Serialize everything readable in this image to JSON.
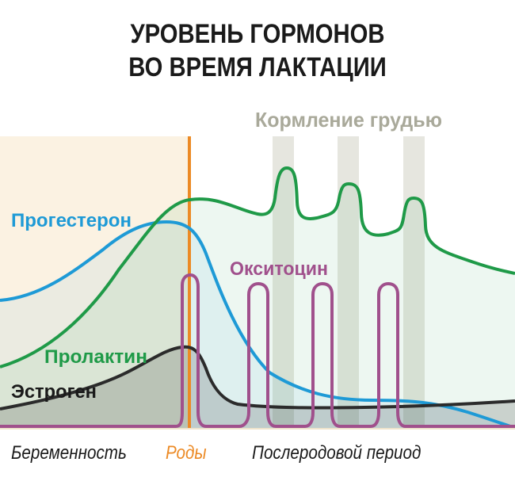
{
  "title": {
    "line1": "УРОВЕНЬ ГОРМОНОВ",
    "line2": "ВО ВРЕМЯ ЛАКТАЦИИ"
  },
  "feeding_label": "Кормление грудью",
  "phases": {
    "pregnancy": "Беременность",
    "birth": "Роды",
    "postpartum": "Послеродовой период"
  },
  "colors": {
    "progesterone": "#1e9ad6",
    "prolactin": "#1f9a48",
    "estrogen": "#2b2b2b",
    "oxytocin": "#a0508c",
    "birth_line": "#ec8a25",
    "feeding_band": "#b8b8a2",
    "pregnancy_bg": "#fbf2e2"
  },
  "chart_data": {
    "type": "line",
    "title": "УРОВЕНЬ ГОРМОНОВ ВО ВРЕМЯ ЛАКТАЦИИ",
    "x_phases": [
      "Беременность",
      "Роды",
      "Послеродовой период"
    ],
    "annotation": "Кормление грудью",
    "feeding_episodes": 3,
    "series": [
      {
        "name": "Прогестерон",
        "trend": "rises during pregnancy, peaks just before birth, drops sharply after birth",
        "points": [
          [
            0,
            0.46
          ],
          [
            0.2,
            0.62
          ],
          [
            0.32,
            0.82
          ],
          [
            0.37,
            0.85
          ],
          [
            0.45,
            0.6
          ],
          [
            0.55,
            0.28
          ],
          [
            0.75,
            0.12
          ],
          [
            1.0,
            0.0
          ]
        ]
      },
      {
        "name": "Пролактин",
        "trend": "rises through pregnancy, stays high after birth, spikes with each feeding, slowly declines",
        "points": [
          [
            0,
            0.23
          ],
          [
            0.2,
            0.55
          ],
          [
            0.37,
            0.92
          ],
          [
            0.5,
            0.88
          ],
          [
            0.54,
            1.0
          ],
          [
            0.67,
            0.8
          ],
          [
            0.79,
            0.76
          ],
          [
            1.0,
            0.62
          ]
        ]
      },
      {
        "name": "Эстроген",
        "trend": "rises to a peak at birth, drops to a low level after birth",
        "points": [
          [
            0,
            0.11
          ],
          [
            0.2,
            0.23
          ],
          [
            0.36,
            0.31
          ],
          [
            0.4,
            0.25
          ],
          [
            0.48,
            0.06
          ],
          [
            0.7,
            0.06
          ],
          [
            1.0,
            0.09
          ]
        ]
      },
      {
        "name": "Окситоцин",
        "trend": "low, with sharp peaks at birth and at each breastfeeding episode",
        "points": [
          [
            0,
            0.0
          ],
          [
            0.37,
            0.0
          ],
          [
            0.37,
            0.58
          ],
          [
            0.5,
            0.0
          ],
          [
            0.5,
            0.54
          ],
          [
            0.62,
            0.0
          ],
          [
            0.62,
            0.54
          ],
          [
            0.75,
            0.0
          ],
          [
            0.75,
            0.54
          ],
          [
            1.0,
            0.0
          ]
        ]
      }
    ]
  }
}
